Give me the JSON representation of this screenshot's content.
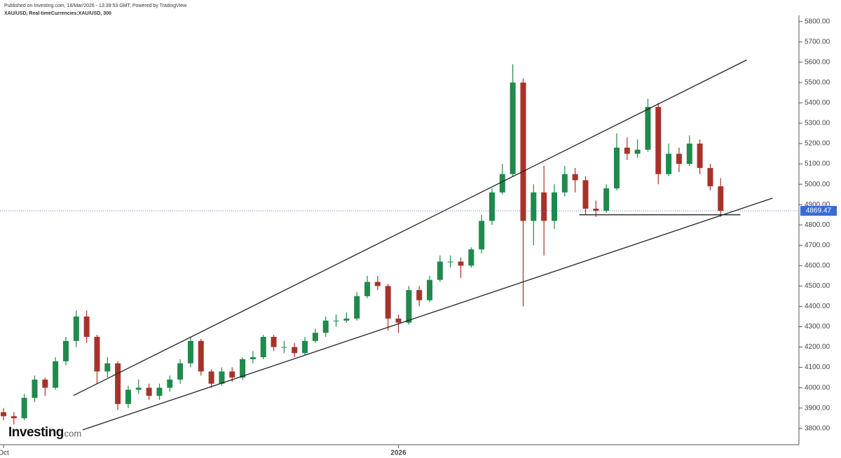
{
  "chart_data": {
    "type": "candlestick",
    "title": "Published on Investing.com, 18/Mar/2026 - 13:39:53 GMT, Powered by TradingView",
    "subtitle": "XAU/USD, Real-timeCurrencies:XAU/USD, 300",
    "watermark": "Investing",
    "watermark_suffix": ".com",
    "up_color": "#1f8a4c",
    "down_color": "#a8322a",
    "categories": [
      "Oct",
      null,
      null,
      null,
      null,
      null,
      null,
      null,
      null,
      null,
      null,
      null,
      null,
      null,
      null,
      null,
      null,
      null,
      null,
      null,
      null,
      null,
      null,
      null,
      null,
      null,
      null,
      null,
      null,
      null,
      null,
      null,
      null,
      null,
      null,
      null,
      null,
      null,
      "2026",
      null,
      null,
      null,
      null,
      null,
      null,
      null,
      null,
      null,
      null,
      null,
      null,
      null,
      null,
      null,
      null,
      null,
      null,
      null,
      null,
      null,
      null,
      null,
      null,
      null,
      null,
      null,
      null,
      null,
      null,
      null
    ],
    "open": [
      3880,
      3860,
      3850,
      3950,
      4040,
      4000,
      4130,
      4230,
      4350,
      4250,
      4080,
      4120,
      3920,
      3990,
      4000,
      3960,
      4000,
      4040,
      4120,
      4230,
      4080,
      4020,
      4080,
      4050,
      4140,
      4150,
      4250,
      4200,
      4200,
      4170,
      4230,
      4270,
      4330,
      4330,
      4340,
      4450,
      4520,
      4500,
      4340,
      4320,
      4480,
      4430,
      4530,
      4620,
      4620,
      4600,
      4680,
      4820,
      4960,
      5050,
      5500,
      4820,
      4960,
      4820,
      4960,
      5050,
      5020,
      4880,
      4870,
      4980,
      5180,
      5150,
      5170,
      5380,
      5050,
      5150,
      5100,
      5200,
      5080,
      4990
    ],
    "high": [
      3900,
      3880,
      3970,
      4060,
      4050,
      4150,
      4250,
      4380,
      4380,
      4260,
      4150,
      4130,
      4010,
      4040,
      4020,
      4020,
      4060,
      4140,
      4250,
      4240,
      4090,
      4100,
      4100,
      4150,
      4180,
      4260,
      4260,
      4230,
      4220,
      4250,
      4290,
      4350,
      4360,
      4370,
      4470,
      4550,
      4550,
      4510,
      4360,
      4500,
      4500,
      4550,
      4650,
      4650,
      4640,
      4690,
      4850,
      4980,
      5100,
      5590,
      5520,
      5000,
      5090,
      5000,
      5090,
      5080,
      5040,
      4920,
      5000,
      5250,
      5230,
      5220,
      5420,
      5400,
      5200,
      5180,
      5240,
      5220,
      5100,
      5030
    ],
    "low": [
      3840,
      3820,
      3840,
      3930,
      3960,
      3990,
      4110,
      4200,
      4220,
      4020,
      4050,
      3890,
      3900,
      3970,
      3940,
      3940,
      3980,
      4020,
      4100,
      4060,
      4000,
      4010,
      4030,
      4040,
      4120,
      4140,
      4180,
      4170,
      4150,
      4160,
      4220,
      4250,
      4300,
      4320,
      4330,
      4440,
      4480,
      4280,
      4270,
      4310,
      4400,
      4420,
      4520,
      4590,
      4540,
      4590,
      4660,
      4800,
      4950,
      5040,
      4400,
      4700,
      4650,
      4780,
      4940,
      4960,
      4850,
      4840,
      4860,
      4970,
      5120,
      5130,
      5160,
      5000,
      5040,
      5060,
      5090,
      5050,
      4970,
      4840
    ],
    "close": [
      3860,
      3850,
      3950,
      4040,
      4000,
      4130,
      4230,
      4350,
      4250,
      4080,
      4120,
      3920,
      3990,
      4000,
      3960,
      4000,
      4040,
      4120,
      4230,
      4080,
      4020,
      4080,
      4050,
      4140,
      4150,
      4250,
      4200,
      4200,
      4170,
      4230,
      4270,
      4330,
      4330,
      4340,
      4450,
      4520,
      4500,
      4340,
      4320,
      4480,
      4430,
      4530,
      4620,
      4620,
      4600,
      4680,
      4820,
      4960,
      5050,
      5500,
      4820,
      4960,
      4820,
      4960,
      5050,
      5020,
      4880,
      4870,
      4980,
      5180,
      5150,
      5170,
      5380,
      5050,
      5150,
      5100,
      5200,
      5080,
      4990,
      4869.47
    ],
    "last_price": 4869.47,
    "last_price_label": "4869.47",
    "last_price_color": "#3b6ad8",
    "trendlines": [
      {
        "x": [
          6.74,
          71.5
        ],
        "y": [
          3962,
          5611
        ]
      },
      {
        "x": [
          7.62,
          74.0
        ],
        "y": [
          3793,
          4932
        ]
      },
      {
        "x": [
          55.4,
          70.9
        ],
        "y": [
          4850,
          4850
        ]
      }
    ],
    "ylim": [
      3720,
      5830
    ],
    "yticks": [
      {
        "value": 3800,
        "label": "3800.00"
      },
      {
        "value": 3900,
        "label": "3900.00"
      },
      {
        "value": 4000,
        "label": "4000.00"
      },
      {
        "value": 4100,
        "label": "4100.00"
      },
      {
        "value": 4200,
        "label": "4200.00"
      },
      {
        "value": 4300,
        "label": "4300.00"
      },
      {
        "value": 4400,
        "label": "4400.00"
      },
      {
        "value": 4500,
        "label": "4500.00"
      },
      {
        "value": 4600,
        "label": "4600.00"
      },
      {
        "value": 4700,
        "label": "4700.00"
      },
      {
        "value": 4800,
        "label": "4800.00"
      },
      {
        "value": 4900,
        "label": "4900.00"
      },
      {
        "value": 5000,
        "label": "5000.00"
      },
      {
        "value": 5100,
        "label": "5100.00"
      },
      {
        "value": 5200,
        "label": "5200.00"
      },
      {
        "value": 5300,
        "label": "5300.00"
      },
      {
        "value": 5400,
        "label": "5400.00"
      },
      {
        "value": 5500,
        "label": "5500.00"
      },
      {
        "value": 5600,
        "label": "5600.00"
      },
      {
        "value": 5700,
        "label": "5700.00"
      },
      {
        "value": 5800,
        "label": "5800.00"
      }
    ]
  }
}
